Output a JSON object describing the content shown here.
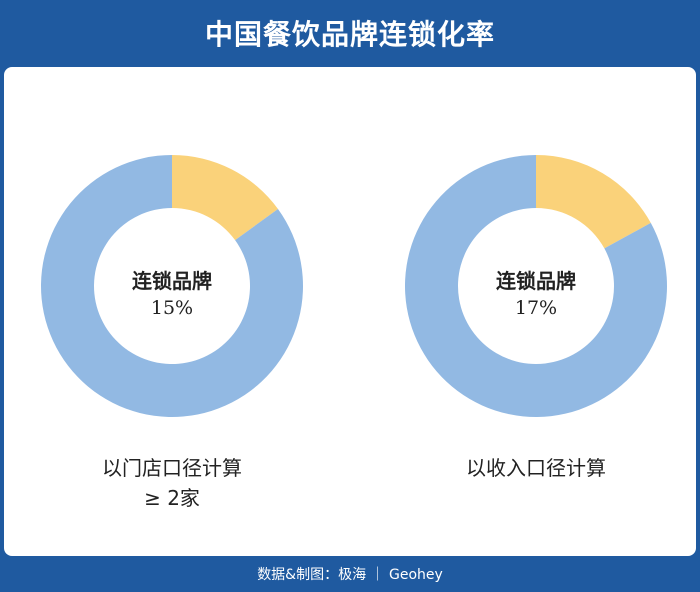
{
  "title": "中国餐饮品牌连锁化率",
  "footer": "数据&制图：极海 ｜ Geohey",
  "colors": {
    "background": "#1f5aa0",
    "chain": "#fad27a",
    "other": "#92b9e3"
  },
  "chart_data": [
    {
      "type": "pie",
      "donut": true,
      "center_label": "连锁品牌",
      "center_value": "15%",
      "caption": "以门店口径计算\n≥ 2家",
      "slices": [
        {
          "label": "连锁品牌",
          "value": 15,
          "color": "#fad27a"
        },
        {
          "label": "",
          "value": 85,
          "color": "#92b9e3"
        }
      ]
    },
    {
      "type": "pie",
      "donut": true,
      "center_label": "连锁品牌",
      "center_value": "17%",
      "caption": "以收入口径计算",
      "slices": [
        {
          "label": "连锁品牌",
          "value": 17,
          "color": "#fad27a"
        },
        {
          "label": "",
          "value": 83,
          "color": "#92b9e3"
        }
      ]
    }
  ]
}
